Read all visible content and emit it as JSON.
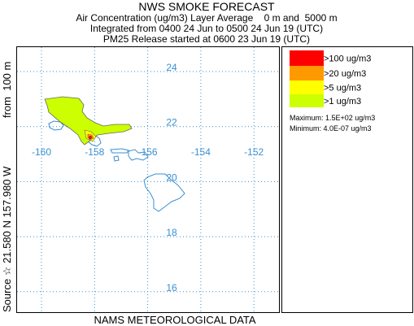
{
  "title": "NWS SMOKE FORECAST",
  "subtitle_lines": [
    "Air Concentration (ug/m3) Layer Average    0 m and  5000 m",
    "Integrated from 0400 24 Jun to 0500 24 Jun 19 (UTC)",
    "PM25 Release started at 0600 23 Jun 19 (UTC)"
  ],
  "map": {
    "lat_labels": [
      "24",
      "22",
      "20",
      "18",
      "16"
    ],
    "lon_labels": [
      "-160",
      "-158",
      "-156",
      "-154",
      "-152"
    ],
    "source_label": "Source ☆ 21.580 N 157.980 W",
    "height_label": "from  100 m",
    "footer": "NAMS METEOROLOGICAL DATA"
  },
  "legend": {
    "entries": [
      {
        "label": ">100 ug/m3",
        "color": "#ff0000"
      },
      {
        "label": ">20 ug/m3",
        "color": "#ff9900"
      },
      {
        "label": ">5 ug/m3",
        "color": "#ffff00"
      },
      {
        "label": ">1 ug/m3",
        "color": "#ccff00"
      }
    ],
    "maximum": "Maximum: 1.5E+02 ug/m3",
    "minimum": "Minimum: 4.0E-07 ug/m3"
  }
}
